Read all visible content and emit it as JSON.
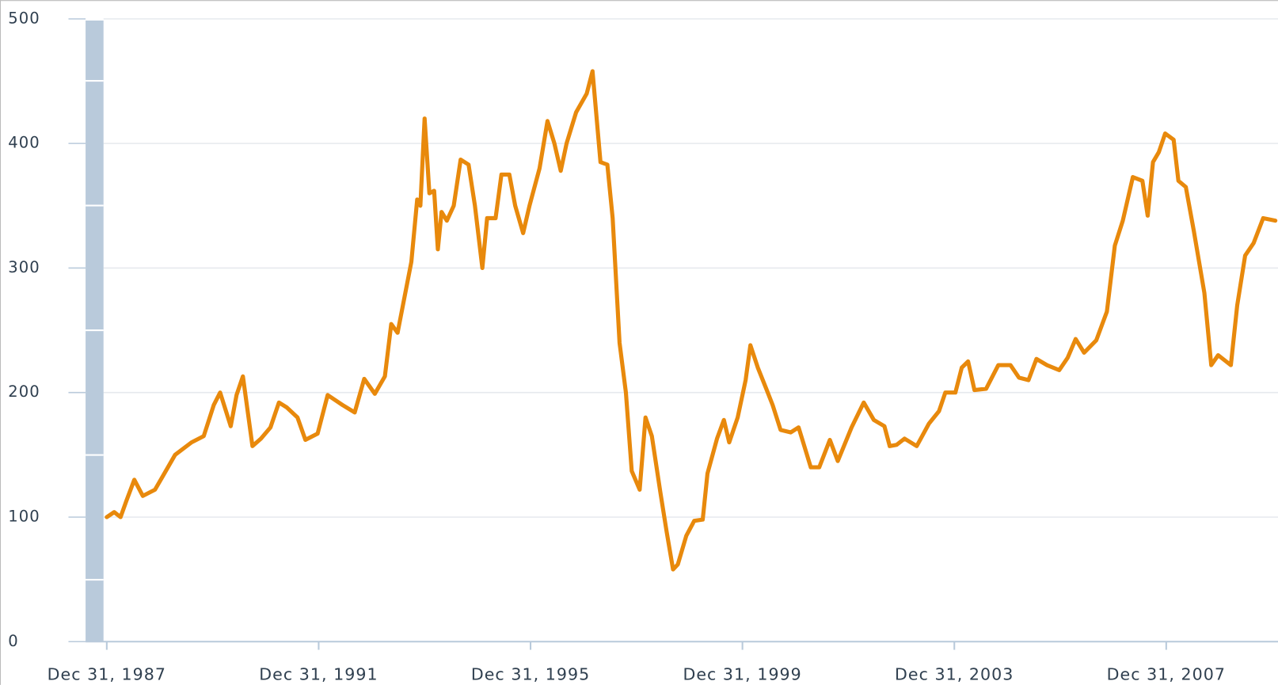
{
  "chart_data": {
    "type": "line",
    "x": [
      1988.0,
      1988.14,
      1988.26,
      1988.37,
      1988.52,
      1988.68,
      1988.91,
      1989.06,
      1989.29,
      1989.6,
      1989.83,
      1990.02,
      1990.14,
      1990.34,
      1990.45,
      1990.57,
      1990.75,
      1990.91,
      1991.09,
      1991.25,
      1991.4,
      1991.6,
      1991.75,
      1991.98,
      1992.17,
      1992.45,
      1992.68,
      1992.86,
      1993.06,
      1993.25,
      1993.37,
      1993.49,
      1993.75,
      1993.86,
      1993.92,
      1994.0,
      1994.09,
      1994.18,
      1994.25,
      1994.32,
      1994.42,
      1994.55,
      1994.68,
      1994.83,
      1994.95,
      1995.09,
      1995.18,
      1995.34,
      1995.45,
      1995.6,
      1995.71,
      1995.86,
      1995.98,
      1996.17,
      1996.32,
      1996.45,
      1996.57,
      1996.68,
      1996.86,
      1997.06,
      1997.17,
      1997.32,
      1997.45,
      1997.55,
      1997.68,
      1997.8,
      1997.91,
      1998.06,
      1998.17,
      1998.29,
      1998.45,
      1998.57,
      1998.69,
      1998.78,
      1998.94,
      1999.09,
      1999.25,
      1999.34,
      1999.52,
      1999.65,
      1999.75,
      1999.91,
      2000.06,
      2000.15,
      2000.29,
      2000.45,
      2000.57,
      2000.72,
      2000.91,
      2001.06,
      2001.29,
      2001.45,
      2001.65,
      2001.8,
      2002.06,
      2002.29,
      2002.48,
      2002.68,
      2002.78,
      2002.91,
      2003.06,
      2003.29,
      2003.52,
      2003.71,
      2003.83,
      2004.02,
      2004.14,
      2004.26,
      2004.38,
      2004.6,
      2004.83,
      2005.06,
      2005.22,
      2005.4,
      2005.55,
      2005.75,
      2005.98,
      2006.14,
      2006.29,
      2006.45,
      2006.68,
      2006.88,
      2007.03,
      2007.18,
      2007.37,
      2007.55,
      2007.65,
      2007.75,
      2007.86,
      2007.98,
      2008.14,
      2008.23,
      2008.37,
      2008.52,
      2008.72,
      2008.85,
      2008.98,
      2009.22,
      2009.34,
      2009.49,
      2009.65,
      2009.83,
      2010.06
    ],
    "series": [
      {
        "color": "#e8890c",
        "values": [
          100,
          104,
          100,
          113,
          130,
          117,
          122,
          133,
          150,
          160,
          165,
          190,
          200,
          173,
          198,
          213,
          157,
          163,
          172,
          192,
          188,
          180,
          162,
          167,
          198,
          190,
          184,
          211,
          199,
          213,
          255,
          248,
          305,
          355,
          350,
          420,
          360,
          362,
          315,
          345,
          338,
          350,
          387,
          383,
          350,
          300,
          340,
          340,
          375,
          375,
          350,
          328,
          350,
          380,
          418,
          400,
          378,
          400,
          425,
          440,
          458,
          385,
          383,
          340,
          240,
          200,
          137,
          122,
          180,
          165,
          120,
          88,
          58,
          62,
          85,
          97,
          98,
          135,
          163,
          178,
          160,
          180,
          210,
          238,
          220,
          203,
          190,
          170,
          168,
          172,
          140,
          140,
          162,
          145,
          172,
          192,
          178,
          173,
          157,
          158,
          163,
          157,
          175,
          185,
          200,
          200,
          220,
          225,
          202,
          203,
          222,
          222,
          212,
          210,
          227,
          222,
          218,
          228,
          243,
          232,
          242,
          265,
          318,
          338,
          373,
          370,
          342,
          385,
          393,
          408,
          403,
          370,
          365,
          330,
          280,
          222,
          230,
          222,
          270,
          310,
          320,
          340,
          338
        ]
      }
    ],
    "xlim": [
      1987.6,
      2010.11
    ],
    "xticks": [
      {
        "value": 1988,
        "label": "Dec 31, 1987"
      },
      {
        "value": 1992,
        "label": "Dec 31, 1991"
      },
      {
        "value": 1996,
        "label": "Dec 31, 1995"
      },
      {
        "value": 2000,
        "label": "Dec 31, 1999"
      },
      {
        "value": 2004,
        "label": "Dec 31, 2003"
      },
      {
        "value": 2008,
        "label": "Dec 31, 2007"
      }
    ],
    "ylim": [
      0,
      500
    ],
    "yticks": [
      0,
      100,
      200,
      300,
      400,
      500
    ],
    "grid": true
  }
}
